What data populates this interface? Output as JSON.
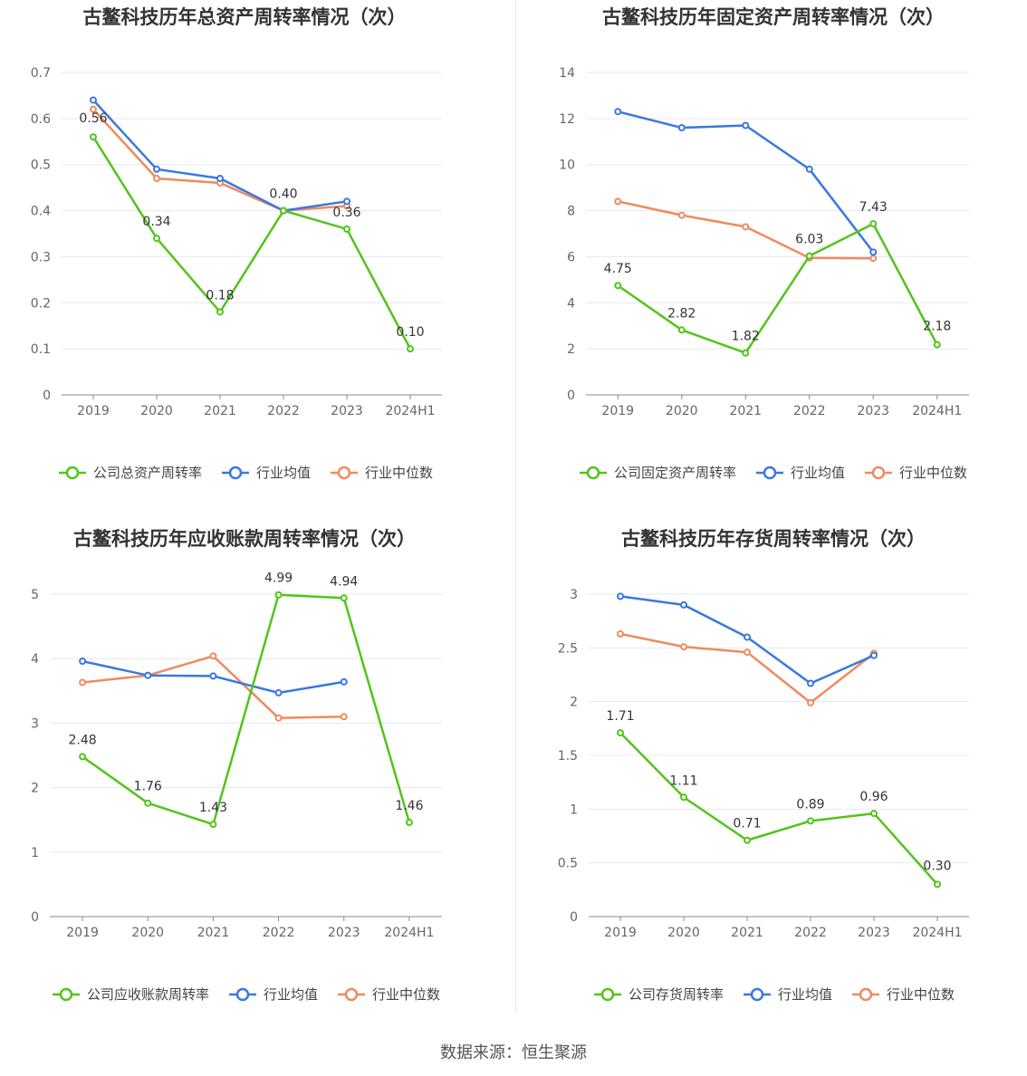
{
  "colors": {
    "company": "#52c41a",
    "average": "#3a78e0",
    "median": "#f08a5d",
    "grid": "#e6e8f0",
    "axis": "#888888"
  },
  "source": "数据来源：恒生聚源",
  "chart_data": [
    {
      "type": "line",
      "title": "古鳌科技历年总资产周转率情况（次）",
      "categories": [
        "2019",
        "2020",
        "2021",
        "2022",
        "2023",
        "2024H1"
      ],
      "ylim": [
        0,
        0.7
      ],
      "yticks": [
        "0",
        "0.1",
        "0.2",
        "0.3",
        "0.4",
        "0.5",
        "0.6",
        "0.7"
      ],
      "series": [
        {
          "name": "公司总资产周转率",
          "key": "company",
          "values": [
            0.56,
            0.34,
            0.18,
            0.4,
            0.36,
            0.1
          ],
          "labels": [
            "0.56",
            "0.34",
            "0.18",
            "0.40",
            "0.36",
            "0.10"
          ]
        },
        {
          "name": "行业均值",
          "key": "average",
          "values": [
            0.64,
            0.49,
            0.47,
            0.4,
            0.42,
            null
          ]
        },
        {
          "name": "行业中位数",
          "key": "median",
          "values": [
            0.62,
            0.47,
            0.46,
            0.4,
            0.41,
            null
          ]
        }
      ],
      "legend": "bottom",
      "grid": true
    },
    {
      "type": "line",
      "title": "古鳌科技历年固定资产周转率情况（次）",
      "categories": [
        "2019",
        "2020",
        "2021",
        "2022",
        "2023",
        "2024H1"
      ],
      "ylim": [
        0,
        14
      ],
      "yticks": [
        "0",
        "2",
        "4",
        "6",
        "8",
        "10",
        "12",
        "14"
      ],
      "series": [
        {
          "name": "公司固定资产周转率",
          "key": "company",
          "values": [
            4.75,
            2.82,
            1.82,
            6.03,
            7.43,
            2.18
          ],
          "labels": [
            "4.75",
            "2.82",
            "1.82",
            "6.03",
            "7.43",
            "2.18"
          ]
        },
        {
          "name": "行业均值",
          "key": "average",
          "values": [
            12.3,
            11.6,
            11.7,
            9.8,
            6.2,
            null
          ]
        },
        {
          "name": "行业中位数",
          "key": "median",
          "values": [
            8.4,
            7.8,
            7.3,
            5.95,
            5.93,
            null
          ]
        }
      ],
      "legend": "bottom",
      "grid": true
    },
    {
      "type": "line",
      "title": "古鳌科技历年应收账款周转率情况（次）",
      "categories": [
        "2019",
        "2020",
        "2021",
        "2022",
        "2023",
        "2024H1"
      ],
      "ylim": [
        0,
        5
      ],
      "yticks": [
        "0",
        "1",
        "2",
        "3",
        "4",
        "5"
      ],
      "series": [
        {
          "name": "公司应收账款周转率",
          "key": "company",
          "values": [
            2.48,
            1.76,
            1.43,
            4.99,
            4.94,
            1.46
          ],
          "labels": [
            "2.48",
            "1.76",
            "1.43",
            "4.99",
            "4.94",
            "1.46"
          ]
        },
        {
          "name": "行业均值",
          "key": "average",
          "values": [
            3.96,
            3.74,
            3.73,
            3.47,
            3.64,
            null
          ]
        },
        {
          "name": "行业中位数",
          "key": "median",
          "values": [
            3.63,
            3.74,
            4.04,
            3.08,
            3.1,
            null
          ]
        }
      ],
      "legend": "bottom",
      "grid": true
    },
    {
      "type": "line",
      "title": "古鳌科技历年存货周转率情况（次）",
      "categories": [
        "2019",
        "2020",
        "2021",
        "2022",
        "2023",
        "2024H1"
      ],
      "ylim": [
        0,
        3
      ],
      "yticks": [
        "0",
        "0.5",
        "1",
        "1.5",
        "2",
        "2.5",
        "3"
      ],
      "series": [
        {
          "name": "公司存货周转率",
          "key": "company",
          "values": [
            1.71,
            1.11,
            0.71,
            0.89,
            0.96,
            0.3
          ],
          "labels": [
            "1.71",
            "1.11",
            "0.71",
            "0.89",
            "0.96",
            "0.30"
          ]
        },
        {
          "name": "行业均值",
          "key": "average",
          "values": [
            2.98,
            2.9,
            2.6,
            2.17,
            2.43,
            null
          ]
        },
        {
          "name": "行业中位数",
          "key": "median",
          "values": [
            2.63,
            2.51,
            2.46,
            1.99,
            2.45,
            null
          ]
        }
      ],
      "legend": "bottom",
      "grid": true
    }
  ]
}
